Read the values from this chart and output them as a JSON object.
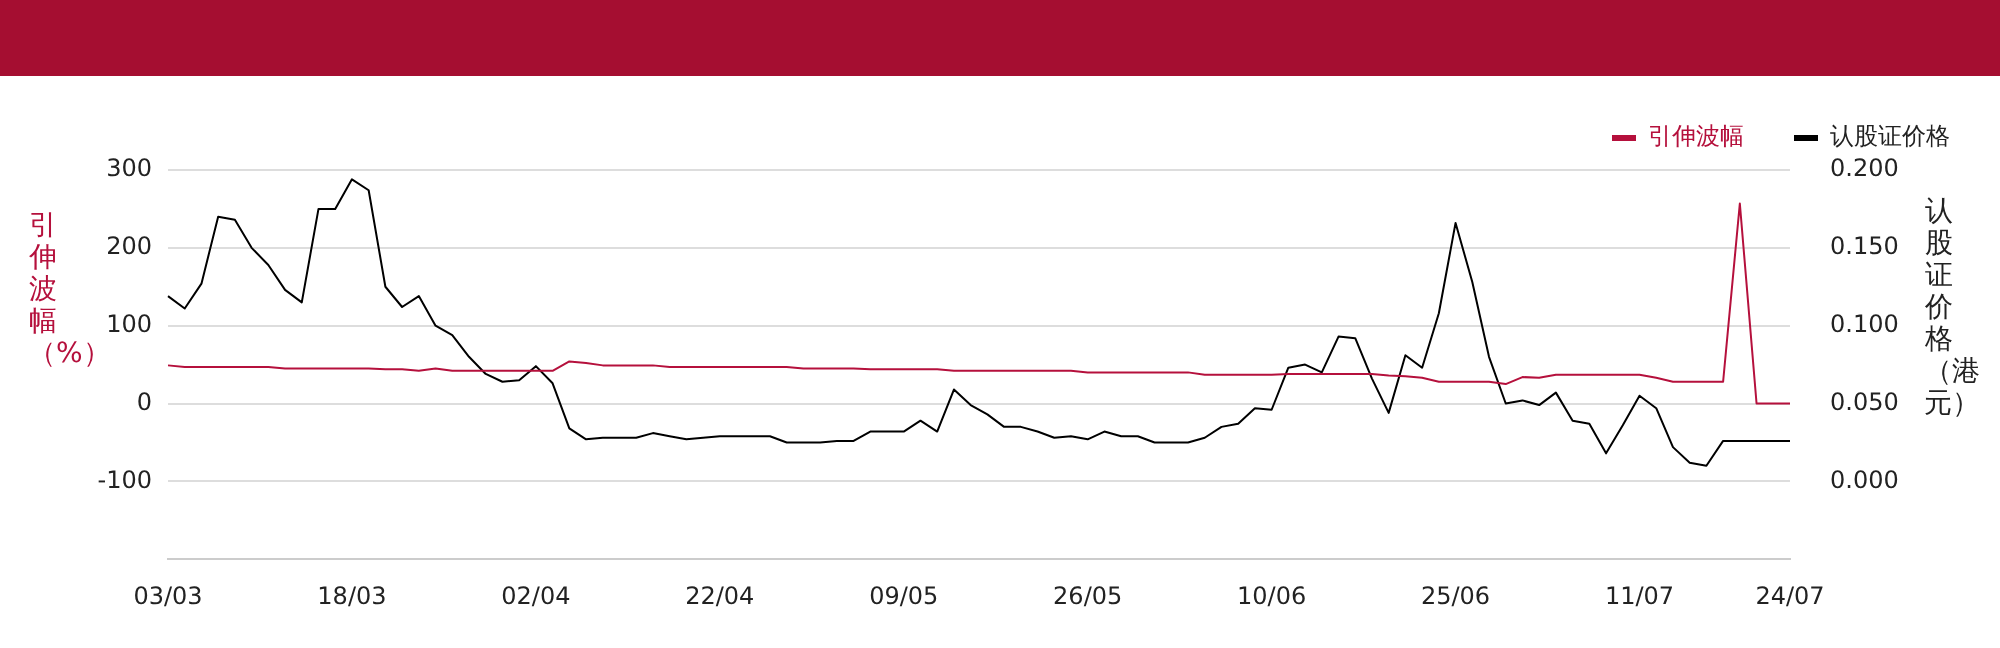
{
  "chart_data": {
    "type": "line",
    "ylabel": "引伸波幅（%）",
    "y2label": "认股证价格（港元）",
    "categories": [
      "03/03",
      null,
      null,
      null,
      null,
      null,
      null,
      null,
      null,
      null,
      null,
      "18/03",
      null,
      null,
      null,
      null,
      null,
      null,
      null,
      null,
      null,
      null,
      "02/04",
      null,
      null,
      null,
      null,
      null,
      null,
      null,
      null,
      null,
      null,
      "22/04",
      null,
      null,
      null,
      null,
      null,
      null,
      null,
      null,
      null,
      null,
      "09/05",
      null,
      null,
      null,
      null,
      null,
      null,
      null,
      null,
      null,
      null,
      "26/05",
      null,
      null,
      null,
      null,
      null,
      null,
      null,
      null,
      null,
      null,
      "10/06",
      null,
      null,
      null,
      null,
      null,
      null,
      null,
      null,
      null,
      null,
      "25/06",
      null,
      null,
      null,
      null,
      null,
      null,
      null,
      null,
      null,
      null,
      "11/07",
      null,
      null,
      null,
      null,
      null,
      null,
      null,
      null,
      "24/07"
    ],
    "series": [
      {
        "name": "引伸波幅",
        "color": "#b5103c",
        "values": [
          49,
          47,
          47,
          47,
          47,
          47,
          47,
          45,
          45,
          45,
          45,
          45,
          45,
          44,
          44,
          42,
          45,
          42,
          42,
          42,
          42,
          42,
          42,
          42,
          54,
          52,
          49,
          49,
          49,
          49,
          47,
          47,
          47,
          47,
          47,
          47,
          47,
          47,
          45,
          45,
          45,
          45,
          44,
          44,
          44,
          44,
          44,
          42,
          42,
          42,
          42,
          42,
          42,
          42,
          42,
          40,
          40,
          40,
          40,
          40,
          40,
          40,
          37,
          37,
          37,
          37,
          37,
          38,
          38,
          38,
          38,
          38,
          38,
          36,
          35,
          33,
          28,
          28,
          28,
          28,
          25,
          34,
          33,
          37,
          37,
          37,
          37,
          37,
          37,
          33,
          28,
          28,
          28,
          28,
          257,
          0,
          0,
          0
        ]
      },
      {
        "name": "认股证价格",
        "color": "#000000",
        "axis": "y2",
        "values": [
          0.119,
          0.111,
          0.127,
          0.17,
          0.168,
          0.15,
          0.139,
          0.123,
          0.115,
          0.175,
          0.175,
          0.194,
          0.187,
          0.125,
          0.112,
          0.119,
          0.1,
          0.094,
          0.08,
          0.069,
          0.064,
          0.065,
          0.074,
          0.063,
          0.034,
          0.027,
          0.028,
          0.028,
          0.028,
          0.031,
          0.029,
          0.027,
          0.028,
          0.029,
          0.029,
          0.029,
          0.029,
          0.025,
          0.025,
          0.025,
          0.026,
          0.026,
          0.032,
          0.032,
          0.032,
          0.039,
          0.032,
          0.059,
          0.049,
          0.043,
          0.035,
          0.035,
          0.032,
          0.028,
          0.029,
          0.027,
          0.032,
          0.029,
          0.029,
          0.025,
          0.025,
          0.025,
          0.028,
          0.035,
          0.037,
          0.047,
          0.046,
          0.073,
          0.075,
          0.07,
          0.093,
          0.092,
          0.066,
          0.044,
          0.081,
          0.073,
          0.108,
          0.166,
          0.128,
          0.08,
          0.05,
          0.052,
          0.049,
          0.057,
          0.039,
          0.037,
          0.018,
          0.036,
          0.055,
          0.047,
          0.022,
          0.012,
          0.01,
          0.026,
          0.026,
          0.026,
          0.026,
          0.026
        ]
      }
    ],
    "ylim": [
      -200,
      300
    ],
    "yticks": [
      -100,
      0,
      100,
      200,
      300
    ],
    "y2lim": [
      -0.05,
      0.2
    ],
    "y2ticks": [
      {
        "value": 0,
        "label": "0.000"
      },
      {
        "value": 0.05,
        "label": "0.050"
      },
      {
        "value": 0.1,
        "label": "0.100"
      },
      {
        "value": 0.15,
        "label": "0.150"
      },
      {
        "value": 0.2,
        "label": "0.200"
      }
    ],
    "grid": "y",
    "legend": "top right"
  }
}
